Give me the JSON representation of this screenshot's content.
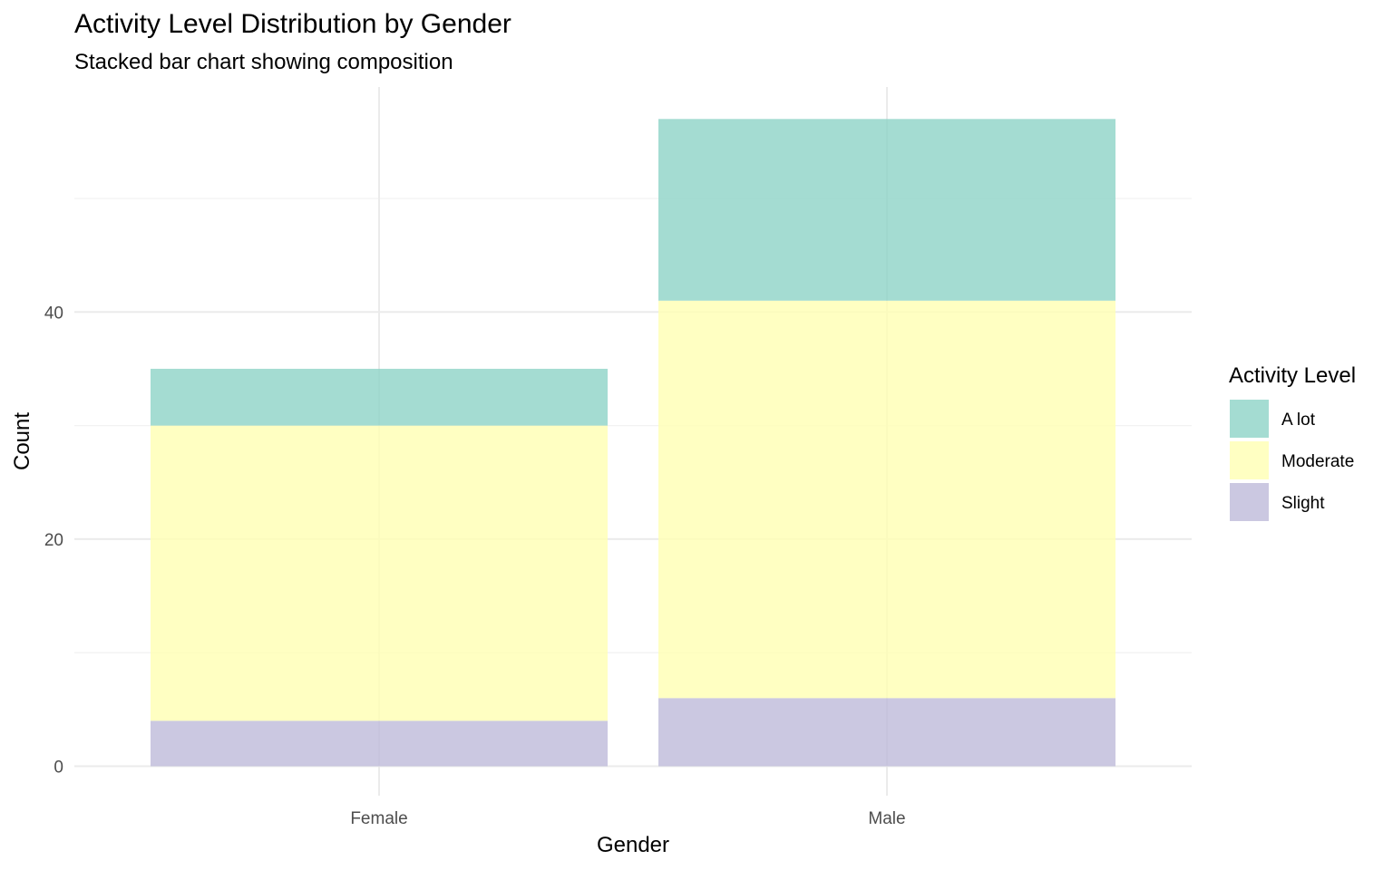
{
  "chart_data": {
    "type": "bar",
    "stacked": true,
    "title": "Activity Level Distribution by Gender",
    "subtitle": "Stacked bar chart showing composition",
    "xlabel": "Gender",
    "ylabel": "Count",
    "categories": [
      "Female",
      "Male"
    ],
    "series": [
      {
        "name": "Slight",
        "values": [
          4,
          6
        ],
        "color": "#bebada"
      },
      {
        "name": "Moderate",
        "values": [
          26,
          35
        ],
        "color": "#ffffb3"
      },
      {
        "name": "A lot",
        "values": [
          5,
          16
        ],
        "color": "#8dd3c7"
      }
    ],
    "stack_order_bottom_to_top": [
      "Slight",
      "Moderate",
      "A lot"
    ],
    "ylim": [
      -2.1,
      59.6
    ],
    "yticks": [
      0,
      20,
      40
    ],
    "ytick_labels": [
      "0",
      "20",
      "40"
    ],
    "grid": true,
    "legend": {
      "title": "Activity Level",
      "position": "right",
      "entries": [
        "A lot",
        "Moderate",
        "Slight"
      ]
    }
  }
}
